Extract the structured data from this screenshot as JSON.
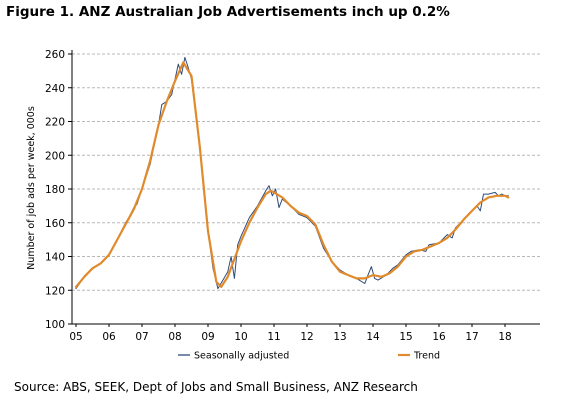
{
  "title": "Figure 1. ANZ Australian Job Advertisements inch up 0.2%",
  "source": "Source: ABS, SEEK, Dept of Jobs and Small Business, ANZ Research",
  "chart_data": {
    "type": "line",
    "ylabel": "Number of job ads per week, 000s",
    "xlabel": "",
    "ylim": [
      100,
      260
    ],
    "yticks": [
      100,
      120,
      140,
      160,
      180,
      200,
      220,
      240,
      260
    ],
    "xlim": [
      2005,
      2019
    ],
    "xtick_labels": [
      "05",
      "06",
      "07",
      "08",
      "09",
      "10",
      "11",
      "12",
      "13",
      "14",
      "15",
      "16",
      "17",
      "18"
    ],
    "grid": "horizontal dashed",
    "legend": "bottom",
    "series": [
      {
        "name": "Seasonally adjusted",
        "color": "#2e4b7a",
        "points": [
          [
            2005.0,
            121
          ],
          [
            2005.25,
            128
          ],
          [
            2005.5,
            133
          ],
          [
            2005.75,
            136
          ],
          [
            2006.0,
            141
          ],
          [
            2006.25,
            150
          ],
          [
            2006.5,
            160
          ],
          [
            2006.6,
            163
          ],
          [
            2006.75,
            169
          ],
          [
            2006.85,
            171
          ],
          [
            2007.0,
            180
          ],
          [
            2007.25,
            195
          ],
          [
            2007.5,
            218
          ],
          [
            2007.6,
            230
          ],
          [
            2007.75,
            232
          ],
          [
            2007.9,
            236
          ],
          [
            2008.0,
            245
          ],
          [
            2008.1,
            254
          ],
          [
            2008.2,
            248
          ],
          [
            2008.3,
            258
          ],
          [
            2008.4,
            252
          ],
          [
            2008.5,
            245
          ],
          [
            2008.75,
            205
          ],
          [
            2009.0,
            155
          ],
          [
            2009.15,
            133
          ],
          [
            2009.3,
            121
          ],
          [
            2009.45,
            126
          ],
          [
            2009.6,
            131
          ],
          [
            2009.7,
            140
          ],
          [
            2009.8,
            127
          ],
          [
            2009.9,
            147
          ],
          [
            2010.0,
            152
          ],
          [
            2010.25,
            163
          ],
          [
            2010.5,
            170
          ],
          [
            2010.75,
            179
          ],
          [
            2010.85,
            182
          ],
          [
            2010.95,
            176
          ],
          [
            2011.05,
            180
          ],
          [
            2011.15,
            169
          ],
          [
            2011.25,
            174
          ],
          [
            2011.5,
            170
          ],
          [
            2011.75,
            165
          ],
          [
            2012.0,
            163
          ],
          [
            2012.25,
            158
          ],
          [
            2012.5,
            145
          ],
          [
            2012.75,
            137
          ],
          [
            2013.0,
            132
          ],
          [
            2013.25,
            129
          ],
          [
            2013.5,
            127
          ],
          [
            2013.75,
            124
          ],
          [
            2013.85,
            129
          ],
          [
            2013.95,
            134
          ],
          [
            2014.05,
            127
          ],
          [
            2014.15,
            126
          ],
          [
            2014.4,
            129
          ],
          [
            2014.6,
            133
          ],
          [
            2014.75,
            135
          ],
          [
            2015.0,
            141
          ],
          [
            2015.15,
            143
          ],
          [
            2015.4,
            144
          ],
          [
            2015.6,
            143
          ],
          [
            2015.7,
            147
          ],
          [
            2016.0,
            148
          ],
          [
            2016.25,
            153
          ],
          [
            2016.4,
            151
          ],
          [
            2016.5,
            157
          ],
          [
            2016.75,
            162
          ],
          [
            2017.0,
            167
          ],
          [
            2017.15,
            170
          ],
          [
            2017.25,
            167
          ],
          [
            2017.35,
            177
          ],
          [
            2017.5,
            177
          ],
          [
            2017.7,
            178
          ],
          [
            2017.8,
            176
          ],
          [
            2017.9,
            177
          ],
          [
            2018.0,
            176
          ],
          [
            2018.1,
            176
          ]
        ]
      },
      {
        "name": "Trend",
        "color": "#e08a2c",
        "points": [
          [
            2005.0,
            122
          ],
          [
            2005.25,
            128
          ],
          [
            2005.5,
            133
          ],
          [
            2005.75,
            136
          ],
          [
            2006.0,
            141
          ],
          [
            2006.25,
            150
          ],
          [
            2006.5,
            159
          ],
          [
            2006.75,
            168
          ],
          [
            2007.0,
            180
          ],
          [
            2007.25,
            197
          ],
          [
            2007.5,
            218
          ],
          [
            2007.75,
            232
          ],
          [
            2008.0,
            244
          ],
          [
            2008.25,
            255
          ],
          [
            2008.5,
            247
          ],
          [
            2008.75,
            205
          ],
          [
            2009.0,
            155
          ],
          [
            2009.25,
            125
          ],
          [
            2009.4,
            122
          ],
          [
            2009.6,
            128
          ],
          [
            2009.75,
            136
          ],
          [
            2010.0,
            149
          ],
          [
            2010.25,
            160
          ],
          [
            2010.5,
            169
          ],
          [
            2010.75,
            177
          ],
          [
            2010.9,
            179
          ],
          [
            2011.0,
            178
          ],
          [
            2011.25,
            175
          ],
          [
            2011.5,
            170
          ],
          [
            2011.75,
            166
          ],
          [
            2012.0,
            164
          ],
          [
            2012.25,
            159
          ],
          [
            2012.5,
            147
          ],
          [
            2012.75,
            137
          ],
          [
            2013.0,
            131
          ],
          [
            2013.25,
            129
          ],
          [
            2013.5,
            127
          ],
          [
            2013.75,
            127
          ],
          [
            2014.0,
            129
          ],
          [
            2014.25,
            128
          ],
          [
            2014.5,
            130
          ],
          [
            2014.75,
            134
          ],
          [
            2015.0,
            140
          ],
          [
            2015.25,
            143
          ],
          [
            2015.5,
            144
          ],
          [
            2015.75,
            146
          ],
          [
            2016.0,
            148
          ],
          [
            2016.25,
            151
          ],
          [
            2016.5,
            156
          ],
          [
            2016.75,
            162
          ],
          [
            2017.0,
            167
          ],
          [
            2017.25,
            172
          ],
          [
            2017.5,
            175
          ],
          [
            2017.75,
            176
          ],
          [
            2018.0,
            176
          ],
          [
            2018.1,
            175
          ]
        ]
      }
    ]
  }
}
